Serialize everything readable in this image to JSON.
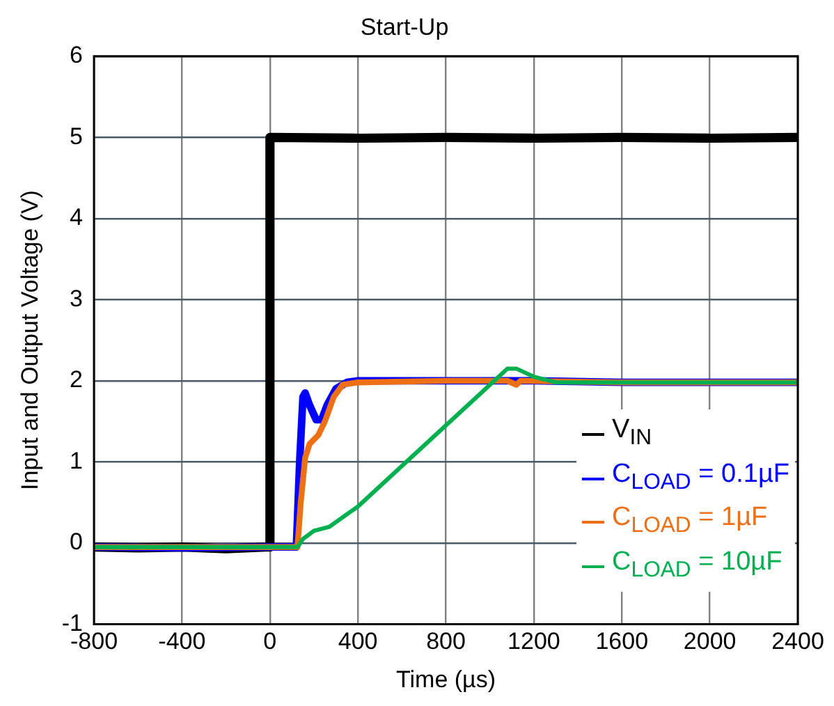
{
  "chart_data": {
    "type": "line",
    "title": "Start-Up",
    "xlabel": "Time (µs)",
    "ylabel": "Input and Output Voltage (V)",
    "xlim": [
      -800,
      2400
    ],
    "xticks": [
      -800,
      -400,
      0,
      400,
      800,
      1200,
      1600,
      2000,
      2400
    ],
    "ylim": [
      -1,
      6
    ],
    "yticks": [
      -1,
      0,
      1,
      2,
      3,
      4,
      5,
      6
    ],
    "grid": true,
    "legend": "bottom right",
    "marker": "none",
    "line_style": "solid",
    "series": [
      {
        "name": "V$_{IN}$",
        "color": "#000000",
        "x": [
          -800,
          -600,
          -400,
          -200,
          -20,
          0,
          0,
          400,
          800,
          1200,
          1600,
          2000,
          2400
        ],
        "values": [
          -0.05,
          -0.06,
          -0.05,
          -0.07,
          -0.05,
          -0.05,
          5.0,
          4.99,
          5.0,
          4.99,
          5.0,
          4.99,
          5.0
        ]
      },
      {
        "name": "C$_{LOAD}$ = 0.1µF",
        "color": "#0000ff",
        "x": [
          -800,
          -400,
          0,
          120,
          135,
          150,
          160,
          180,
          210,
          235,
          260,
          300,
          350,
          400,
          800,
          1200,
          1600,
          2000,
          2400
        ],
        "values": [
          -0.05,
          -0.06,
          -0.05,
          -0.05,
          1.0,
          1.8,
          1.85,
          1.7,
          1.52,
          1.52,
          1.7,
          1.9,
          1.98,
          2.0,
          2.0,
          2.0,
          1.98,
          1.98,
          1.98
        ]
      },
      {
        "name": "C$_{LOAD}$ = 1µF",
        "color": "#ed7014",
        "x": [
          -800,
          0,
          125,
          140,
          160,
          180,
          220,
          250,
          290,
          330,
          400,
          800,
          1080,
          1120,
          1140,
          1600,
          2400
        ],
        "values": [
          -0.05,
          -0.05,
          -0.05,
          0.5,
          1.05,
          1.22,
          1.33,
          1.5,
          1.8,
          1.95,
          1.98,
          2.0,
          2.0,
          1.95,
          2.0,
          1.98,
          1.98
        ]
      },
      {
        "name": "C$_{LOAD}$ = 10µF",
        "color": "#00b050",
        "x": [
          -800,
          0,
          125,
          150,
          200,
          270,
          400,
          600,
          800,
          1000,
          1080,
          1120,
          1200,
          1300,
          2400
        ],
        "values": [
          -0.05,
          -0.05,
          -0.05,
          0.05,
          0.15,
          0.2,
          0.45,
          0.95,
          1.45,
          1.95,
          2.15,
          2.15,
          2.05,
          1.98,
          1.98
        ]
      }
    ]
  }
}
